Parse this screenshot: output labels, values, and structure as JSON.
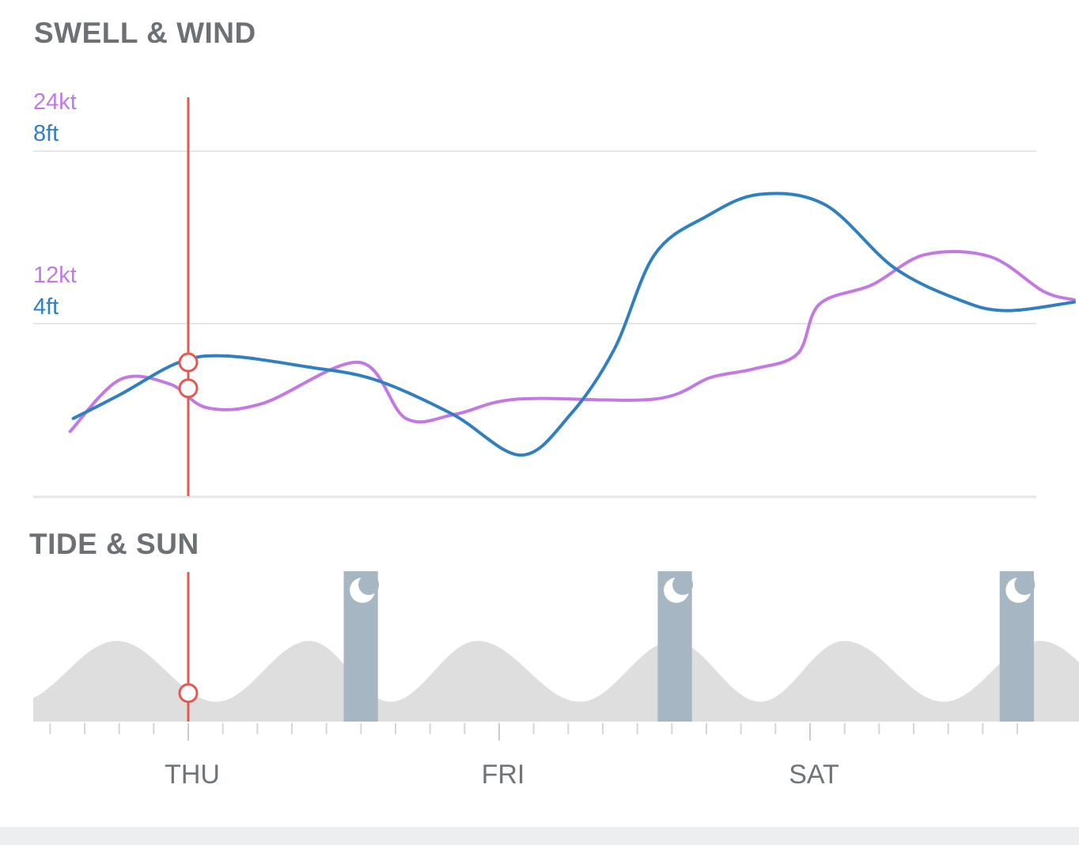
{
  "swell_wind": {
    "title": "SWELL & WIND",
    "axis_labels": [
      {
        "wind": "24kt",
        "swell": "8ft"
      },
      {
        "wind": "12kt",
        "swell": "4ft"
      }
    ]
  },
  "tide_sun": {
    "title": "TIDE & SUN",
    "night_icon": "moon-icon"
  },
  "days": [
    "THU",
    "FRI",
    "SAT"
  ],
  "colors": {
    "wind": "#c379e2",
    "swell": "#2f7fc1",
    "cursor": "#e05a52",
    "tide_fill": "#dedede",
    "night_band": "#a6b6c2",
    "grid": "#e4e6e8",
    "title": "#6c7176",
    "day_label": "#6f7479"
  },
  "chart_data": [
    {
      "type": "line",
      "x_unit": "days",
      "x_range": [
        -0.45,
        2.85
      ],
      "ylim": [
        0,
        10.4
      ],
      "grid_levels_ft": [
        4,
        8
      ],
      "cursor_x": 0,
      "series": [
        {
          "name": "Wind",
          "unit": "kt",
          "points": [
            [
              -0.38,
              4.3
            ],
            [
              -0.22,
              5.4
            ],
            [
              -0.06,
              5.2
            ],
            [
              0.06,
              4.1
            ],
            [
              0.24,
              4.3
            ],
            [
              0.55,
              6.2
            ],
            [
              0.7,
              3.6
            ],
            [
              0.86,
              3.8
            ],
            [
              1.06,
              4.5
            ],
            [
              1.5,
              4.5
            ],
            [
              1.68,
              5.5
            ],
            [
              1.82,
              5.9
            ],
            [
              1.96,
              6.6
            ],
            [
              2.03,
              8.9
            ],
            [
              2.2,
              9.8
            ],
            [
              2.37,
              11.2
            ],
            [
              2.58,
              11.1
            ],
            [
              2.75,
              9.5
            ],
            [
              2.85,
              9.1
            ]
          ],
          "curve_points_ft": [
            [
              -0.38,
              1.5
            ],
            [
              -0.22,
              2.7
            ],
            [
              -0.06,
              2.6
            ],
            [
              0.06,
              2.05
            ],
            [
              0.24,
              2.15
            ],
            [
              0.55,
              3.1
            ],
            [
              0.7,
              1.8
            ],
            [
              0.86,
              1.9
            ],
            [
              1.06,
              2.25
            ],
            [
              1.5,
              2.25
            ],
            [
              1.68,
              2.75
            ],
            [
              1.82,
              2.95
            ],
            [
              1.96,
              3.3
            ],
            [
              2.03,
              4.45
            ],
            [
              2.2,
              4.9
            ],
            [
              2.37,
              5.6
            ],
            [
              2.58,
              5.55
            ],
            [
              2.75,
              4.75
            ],
            [
              2.85,
              4.55
            ]
          ]
        },
        {
          "name": "Swell",
          "unit": "ft",
          "points": [
            [
              -0.37,
              1.8
            ],
            [
              -0.22,
              2.35
            ],
            [
              -0.03,
              3.1
            ],
            [
              0.12,
              3.25
            ],
            [
              0.38,
              3.0
            ],
            [
              0.6,
              2.7
            ],
            [
              0.85,
              1.9
            ],
            [
              1.07,
              0.95
            ],
            [
              1.23,
              1.9
            ],
            [
              1.37,
              3.4
            ],
            [
              1.5,
              5.6
            ],
            [
              1.67,
              6.5
            ],
            [
              1.84,
              7.0
            ],
            [
              2.05,
              6.75
            ],
            [
              2.27,
              5.3
            ],
            [
              2.48,
              4.55
            ],
            [
              2.63,
              4.3
            ],
            [
              2.85,
              4.5
            ]
          ]
        }
      ],
      "cursor_readout": {
        "swell_ft": 3.1,
        "wind_kt": 5.0
      }
    },
    {
      "type": "area",
      "name": "Tide",
      "x_unit": "days",
      "x_range": [
        -0.45,
        2.85
      ],
      "tide_extremes": [
        {
          "type": "high",
          "x": -0.23
        },
        {
          "type": "low",
          "x": 0.09
        },
        {
          "type": "high",
          "x": 0.39
        },
        {
          "type": "low",
          "x": 0.65
        },
        {
          "type": "high",
          "x": 0.93
        },
        {
          "type": "low",
          "x": 1.26
        },
        {
          "type": "high",
          "x": 1.56
        },
        {
          "type": "low",
          "x": 1.84
        },
        {
          "type": "high",
          "x": 2.11
        },
        {
          "type": "low",
          "x": 2.43
        },
        {
          "type": "high",
          "x": 2.74
        }
      ],
      "night_bands": [
        [
          0.5,
          0.61
        ],
        [
          1.51,
          1.62
        ],
        [
          2.61,
          2.72
        ]
      ],
      "cursor_x": 0
    }
  ]
}
